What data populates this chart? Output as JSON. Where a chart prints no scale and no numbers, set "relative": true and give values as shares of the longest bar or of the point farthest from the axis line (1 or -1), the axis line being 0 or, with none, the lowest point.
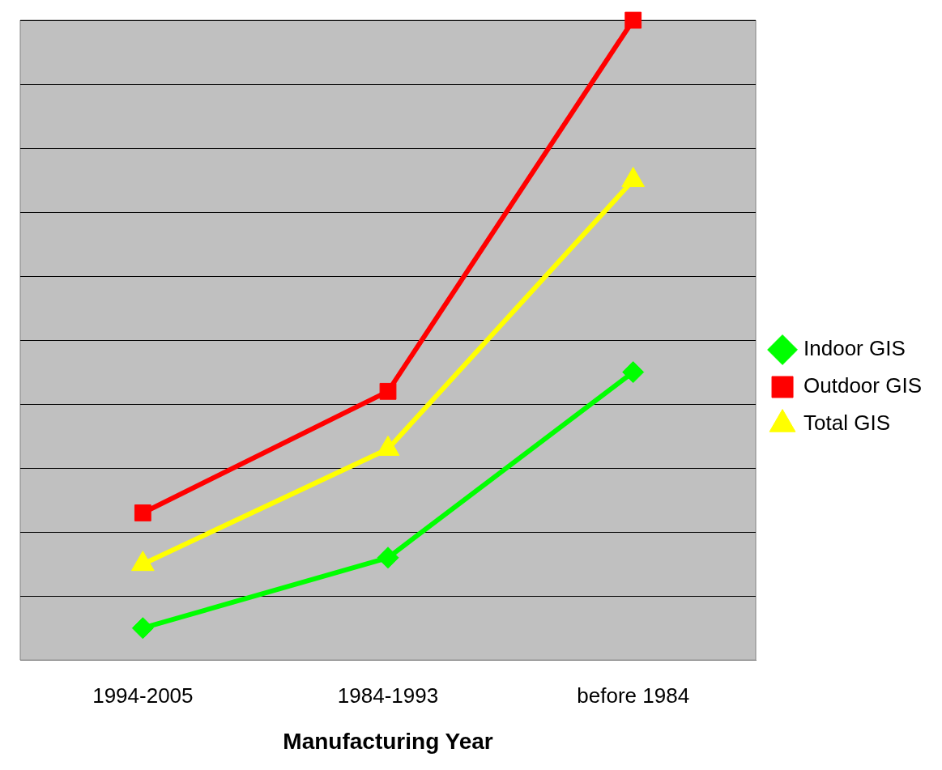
{
  "chart_data": {
    "type": "line",
    "xlabel": "Manufacturing Year",
    "categories": [
      "1994-2005",
      "1984-1993",
      "before 1984"
    ],
    "relative": true,
    "grid": "y",
    "legend": "right",
    "series": [
      {
        "name": "Indoor GIS",
        "color": "#00ff00",
        "marker": "diamond",
        "values": [
          0.05,
          0.16,
          0.45
        ]
      },
      {
        "name": "Outdoor GIS",
        "color": "#ff0000",
        "marker": "square",
        "values": [
          0.23,
          0.42,
          1
        ]
      },
      {
        "name": "Total GIS",
        "color": "#ffff00",
        "marker": "triangle",
        "values": [
          0.15,
          0.33,
          0.75
        ]
      }
    ]
  }
}
